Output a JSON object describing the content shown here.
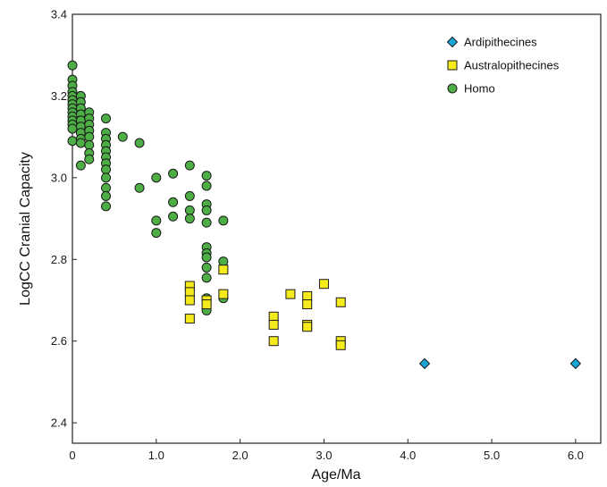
{
  "chart_data": {
    "type": "scatter",
    "xlabel": "Age/Ma",
    "ylabel": "LogCC Cranial Capacity",
    "xlim": [
      0,
      6.3
    ],
    "ylim": [
      2.35,
      3.4
    ],
    "x_ticks": [
      "0",
      "1.0",
      "2.0",
      "3.0",
      "4.0",
      "5.0",
      "6.0"
    ],
    "x_tick_values": [
      0,
      1,
      2,
      3,
      4,
      5,
      6
    ],
    "y_ticks": [
      "2.4",
      "2.6",
      "2.8",
      "3.0",
      "3.2",
      "3.4"
    ],
    "y_tick_values": [
      2.4,
      2.6,
      2.8,
      3.0,
      3.2,
      3.4
    ],
    "grid": false,
    "legend_position": "top-right",
    "series": [
      {
        "name": "Ardipithecines",
        "marker": "diamond",
        "color": "#1AA6D9",
        "points": [
          [
            4.2,
            2.545
          ],
          [
            6.0,
            2.545
          ]
        ]
      },
      {
        "name": "Australopithecines",
        "marker": "square",
        "color": "#F5EB1C",
        "points": [
          [
            1.4,
            2.735
          ],
          [
            1.4,
            2.72
          ],
          [
            1.4,
            2.7
          ],
          [
            1.4,
            2.655
          ],
          [
            1.6,
            2.7
          ],
          [
            1.6,
            2.69
          ],
          [
            1.8,
            2.775
          ],
          [
            1.8,
            2.715
          ],
          [
            2.4,
            2.66
          ],
          [
            2.4,
            2.64
          ],
          [
            2.4,
            2.6
          ],
          [
            2.6,
            2.715
          ],
          [
            2.8,
            2.71
          ],
          [
            2.8,
            2.69
          ],
          [
            2.8,
            2.64
          ],
          [
            2.8,
            2.635
          ],
          [
            3.0,
            2.74
          ],
          [
            3.2,
            2.695
          ],
          [
            3.2,
            2.6
          ],
          [
            3.2,
            2.59
          ]
        ]
      },
      {
        "name": "Homo",
        "marker": "circle",
        "color": "#4DAE45",
        "points": [
          [
            0,
            3.275
          ],
          [
            0,
            3.24
          ],
          [
            0,
            3.225
          ],
          [
            0,
            3.21
          ],
          [
            0,
            3.2
          ],
          [
            0,
            3.19
          ],
          [
            0,
            3.18
          ],
          [
            0,
            3.17
          ],
          [
            0,
            3.16
          ],
          [
            0,
            3.15
          ],
          [
            0,
            3.14
          ],
          [
            0,
            3.13
          ],
          [
            0,
            3.12
          ],
          [
            0,
            3.09
          ],
          [
            0.1,
            3.2
          ],
          [
            0.1,
            3.185
          ],
          [
            0.1,
            3.17
          ],
          [
            0.1,
            3.155
          ],
          [
            0.1,
            3.14
          ],
          [
            0.1,
            3.125
          ],
          [
            0.1,
            3.11
          ],
          [
            0.1,
            3.095
          ],
          [
            0.1,
            3.085
          ],
          [
            0.1,
            3.03
          ],
          [
            0.2,
            3.16
          ],
          [
            0.2,
            3.145
          ],
          [
            0.2,
            3.13
          ],
          [
            0.2,
            3.115
          ],
          [
            0.2,
            3.1
          ],
          [
            0.2,
            3.08
          ],
          [
            0.2,
            3.06
          ],
          [
            0.2,
            3.045
          ],
          [
            0.4,
            3.145
          ],
          [
            0.4,
            3.11
          ],
          [
            0.4,
            3.095
          ],
          [
            0.4,
            3.08
          ],
          [
            0.4,
            3.065
          ],
          [
            0.4,
            3.05
          ],
          [
            0.4,
            3.035
          ],
          [
            0.4,
            3.02
          ],
          [
            0.4,
            3.0
          ],
          [
            0.4,
            2.975
          ],
          [
            0.4,
            2.955
          ],
          [
            0.4,
            2.93
          ],
          [
            0.6,
            3.1
          ],
          [
            0.8,
            3.085
          ],
          [
            0.8,
            2.975
          ],
          [
            1.0,
            3.0
          ],
          [
            1.0,
            2.895
          ],
          [
            1.0,
            2.865
          ],
          [
            1.2,
            3.01
          ],
          [
            1.2,
            2.94
          ],
          [
            1.2,
            2.905
          ],
          [
            1.4,
            3.03
          ],
          [
            1.4,
            2.955
          ],
          [
            1.4,
            2.92
          ],
          [
            1.4,
            2.9
          ],
          [
            1.6,
            3.005
          ],
          [
            1.6,
            2.98
          ],
          [
            1.6,
            2.935
          ],
          [
            1.6,
            2.92
          ],
          [
            1.6,
            2.89
          ],
          [
            1.6,
            2.83
          ],
          [
            1.6,
            2.815
          ],
          [
            1.6,
            2.805
          ],
          [
            1.6,
            2.78
          ],
          [
            1.6,
            2.755
          ],
          [
            1.6,
            2.705
          ],
          [
            1.6,
            2.675
          ],
          [
            1.8,
            2.895
          ],
          [
            1.8,
            2.795
          ],
          [
            1.8,
            2.705
          ]
        ]
      }
    ]
  }
}
